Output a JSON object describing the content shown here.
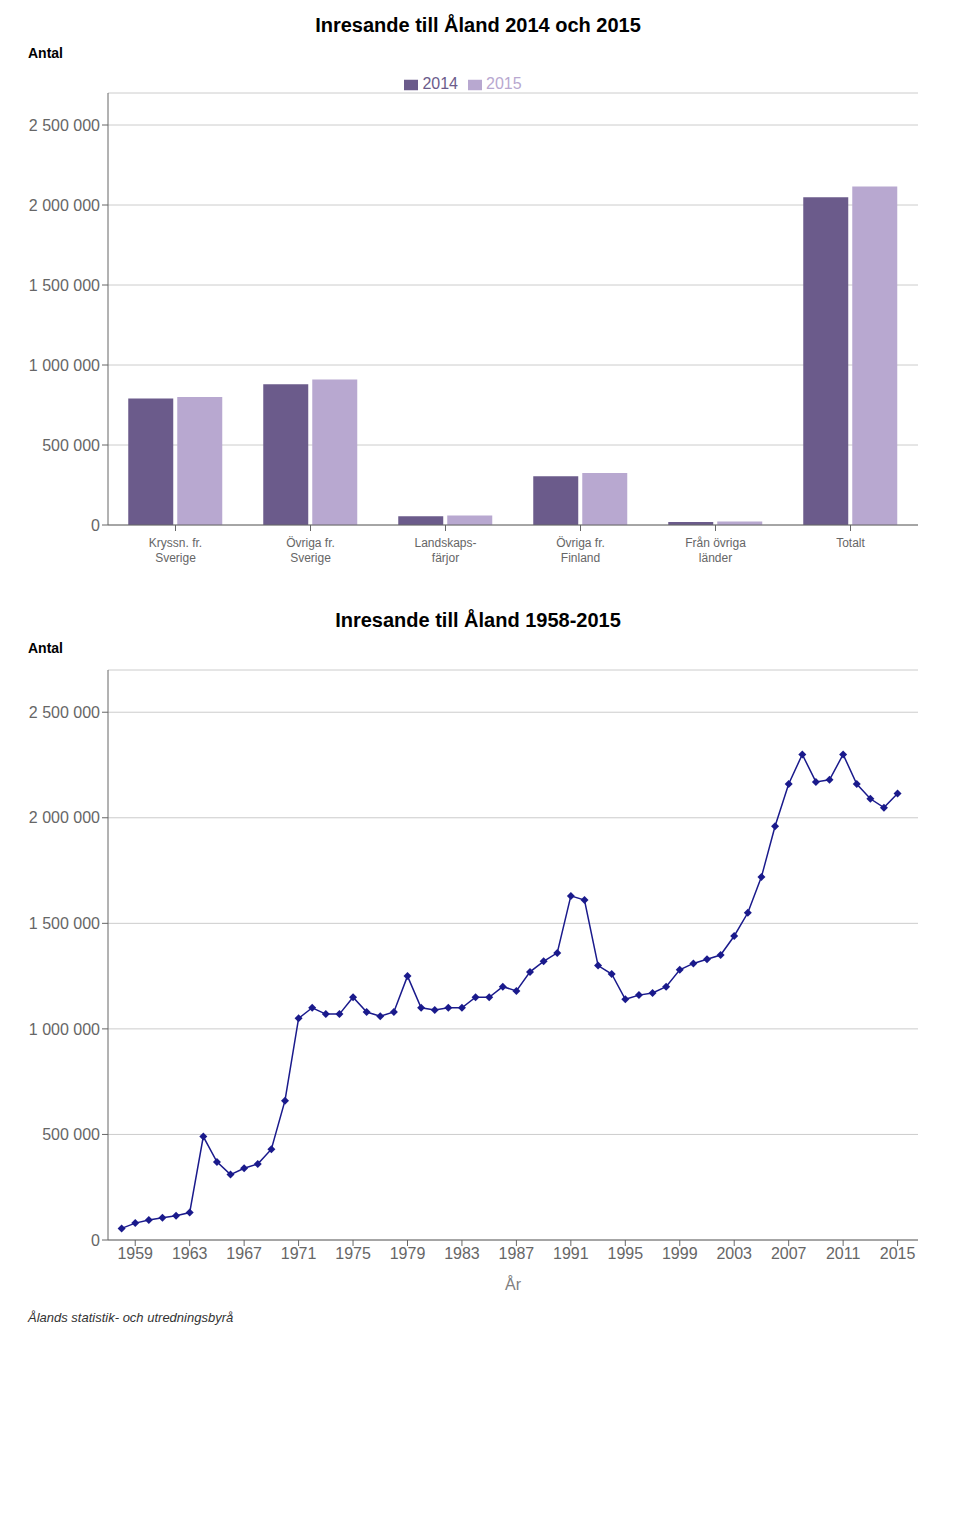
{
  "chart_data": [
    {
      "type": "bar",
      "title": "Inresande till Åland 2014 och 2015",
      "ylabel": "Antal",
      "categories": [
        "Kryssn. fr.\nSverige",
        "Övriga fr.\nSverige",
        "Landskaps-\nfärjor",
        "Övriga fr.\nFinland",
        "Från övriga\nländer",
        "Totalt"
      ],
      "series": [
        {
          "name": "2014",
          "color": "#6B5B8B",
          "values": [
            790000,
            880000,
            55000,
            305000,
            18000,
            2048000
          ]
        },
        {
          "name": "2015",
          "color": "#B8A8D0",
          "values": [
            800000,
            910000,
            60000,
            325000,
            22000,
            2115000
          ]
        }
      ],
      "ylim": [
        0,
        2700000
      ],
      "yticks": [
        0,
        {
          "value": 500000,
          "label": "500 000"
        },
        {
          "value": 1000000,
          "label": "1 000 000"
        },
        {
          "value": 1500000,
          "label": "1 500 000"
        },
        {
          "value": 2000000,
          "label": "2 000 000"
        },
        {
          "value": 2500000,
          "label": "2 500 000"
        }
      ],
      "grid": true,
      "legend": "top"
    },
    {
      "type": "line",
      "title": "Inresande till Åland 1958-2015",
      "ylabel": "Antal",
      "xlabel": "År",
      "x": [
        1958,
        1959,
        1960,
        1961,
        1962,
        1963,
        1964,
        1965,
        1966,
        1967,
        1968,
        1969,
        1970,
        1971,
        1972,
        1973,
        1974,
        1975,
        1976,
        1977,
        1978,
        1979,
        1980,
        1981,
        1982,
        1983,
        1984,
        1985,
        1986,
        1987,
        1988,
        1989,
        1990,
        1991,
        1992,
        1993,
        1994,
        1995,
        1996,
        1997,
        1998,
        1999,
        2000,
        2001,
        2002,
        2003,
        2004,
        2005,
        2006,
        2007,
        2008,
        2009,
        2010,
        2011,
        2012,
        2013,
        2014,
        2015
      ],
      "values": [
        55000,
        80000,
        95000,
        105000,
        115000,
        130000,
        490000,
        370000,
        310000,
        340000,
        360000,
        430000,
        660000,
        1050000,
        1100000,
        1070000,
        1070000,
        1150000,
        1080000,
        1060000,
        1080000,
        1250000,
        1100000,
        1090000,
        1100000,
        1100000,
        1150000,
        1150000,
        1200000,
        1180000,
        1270000,
        1320000,
        1360000,
        1630000,
        1610000,
        1300000,
        1260000,
        1140000,
        1160000,
        1170000,
        1200000,
        1280000,
        1310000,
        1330000,
        1350000,
        1440000,
        1550000,
        1720000,
        1960000,
        2160000,
        2300000,
        2170000,
        2180000,
        2300000,
        2160000,
        2090000,
        2048000,
        2115000
      ],
      "color": "#1A1A8C",
      "marker": "diamond",
      "xlim": [
        1957,
        2016.5
      ],
      "xticks": [
        1959,
        1963,
        1967,
        1971,
        1975,
        1979,
        1983,
        1987,
        1991,
        1995,
        1999,
        2003,
        2007,
        2011,
        2015
      ],
      "ylim": [
        0,
        2700000
      ],
      "yticks": [
        0,
        {
          "value": 500000,
          "label": "500 000"
        },
        {
          "value": 1000000,
          "label": "1 000 000"
        },
        {
          "value": 1500000,
          "label": "1 500 000"
        },
        {
          "value": 2000000,
          "label": "2 000 000"
        },
        {
          "value": 2500000,
          "label": "2 500 000"
        }
      ],
      "grid": true,
      "annotations": [
        "Ålands statistik- och utredningsbyrå"
      ]
    }
  ]
}
